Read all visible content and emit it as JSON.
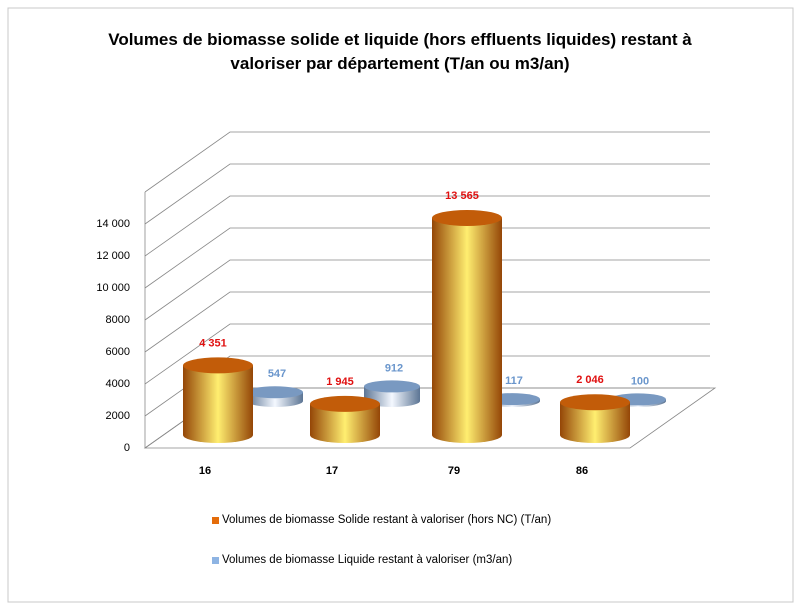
{
  "chart_data": {
    "type": "bar3d",
    "title": "Volumes de biomasse solide et liquide (hors effluents liquides) restant à valoriser par département (T/an ou m3/an)",
    "categories": [
      "16",
      "17",
      "79",
      "86"
    ],
    "series": [
      {
        "name": "Volumes de biomasse Solide restant à valoriser (hors NC) (T/an)",
        "color": "#e46c0a",
        "label_color": "#e01010",
        "values": [
          4351,
          1945,
          13565,
          2046
        ],
        "value_labels": [
          "4 351",
          "1 945",
          "13 565",
          "2 046"
        ]
      },
      {
        "name": "Volumes de biomasse Liquide restant à valoriser (m3/an)",
        "color": "#8eb4e3",
        "label_color": "#6a96cc",
        "values": [
          547,
          912,
          117,
          100
        ]
      }
    ],
    "ylim": [
      0,
      16000
    ],
    "yticks": [
      0,
      2000,
      4000,
      6000,
      8000,
      {
        "value": 10000,
        "label": "10 000"
      },
      {
        "value": 12000,
        "label": "12 000"
      },
      {
        "value": 14000,
        "label": "14 000"
      }
    ],
    "grid": true
  }
}
